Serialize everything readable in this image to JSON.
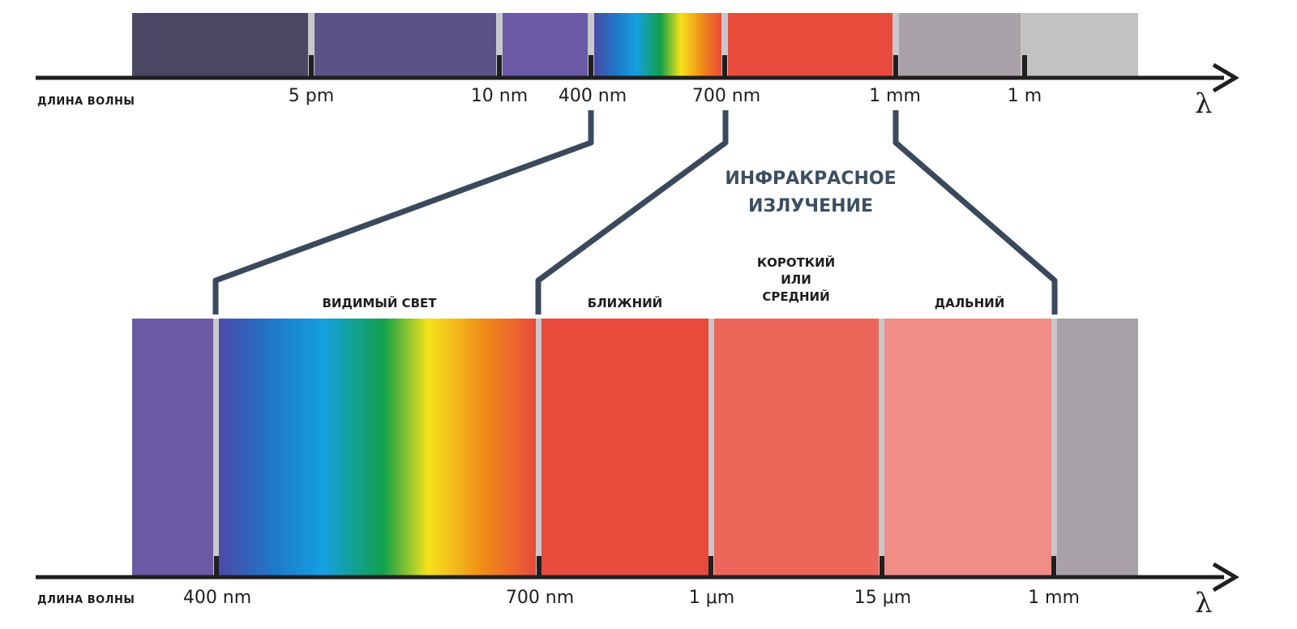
{
  "colors": {
    "axis": "#1f1f1f",
    "connector": "#3a4a5c",
    "separator": "#c8c8cc",
    "top_bands": [
      "#4a4763",
      "#5b5387",
      "#6b5aa6",
      "spectrum",
      "#e84a3c",
      "#a8a2a8",
      "#c2c2c2"
    ],
    "bottom_bands": [
      "#6b5aa6",
      "spectrum",
      "#e84a3c",
      "#ec665a",
      "#f08d87",
      "#a8a2a8"
    ],
    "spectrum": [
      "#4a4aa8",
      "#1f78c8",
      "#14a0e0",
      "#11a04a",
      "#f5e21a",
      "#f08a1a",
      "#e84a3c"
    ]
  },
  "top_axis": {
    "caption": "ДЛИНА ВОЛНЫ",
    "ticks": [
      "5 pm",
      "10 nm",
      "400 nm",
      "700 nm",
      "1 mm",
      "1 m"
    ],
    "symbol": "λ"
  },
  "bottom_axis": {
    "caption": "ДЛИНА ВОЛНЫ",
    "ticks": [
      "400 nm",
      "700 nm",
      "1 μm",
      "15 μm",
      "1 mm"
    ],
    "symbol": "λ"
  },
  "infrared_title": [
    "ИНФРАКРАСНОЕ",
    "ИЗЛУЧЕНИЕ"
  ],
  "bands": {
    "visible": "ВИДИМЫЙ СВЕТ",
    "near": "БЛИЖНИЙ",
    "short_mid": [
      "КОРОТКИЙ",
      "ИЛИ",
      "СРЕДНИЙ"
    ],
    "far": "ДАЛЬНИЙ"
  }
}
